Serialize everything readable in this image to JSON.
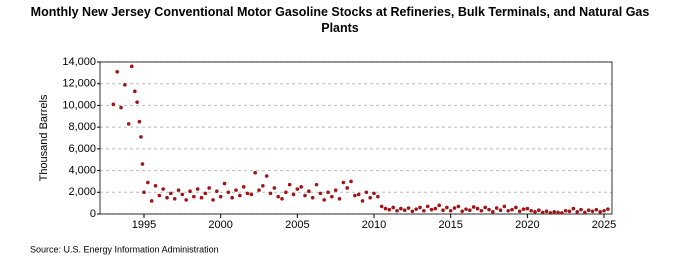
{
  "chart_data": {
    "type": "scatter",
    "title": "Monthly New Jersey Conventional Motor Gasoline Stocks at Refineries, Bulk Terminals, and Natural Gas Plants",
    "y_label": "Thousand Barrels",
    "source": "Source: U.S. Energy Information Administration",
    "color": "#a01418",
    "grid": true,
    "xlim": [
      1992.13,
      2025.52
    ],
    "xticks": [
      1995,
      2000,
      2005,
      2010,
      2015,
      2020,
      2025
    ],
    "ylim": [
      0,
      14000
    ],
    "yticks": [
      0,
      {
        "value": 2000,
        "label": "2,000"
      },
      {
        "value": 4000,
        "label": "4,000"
      },
      {
        "value": 6000,
        "label": "6,000"
      },
      {
        "value": 8000,
        "label": "8,000"
      },
      {
        "value": 10000,
        "label": "10,000"
      },
      {
        "value": 12000,
        "label": "12,000"
      },
      {
        "value": 14000,
        "label": "14,000"
      }
    ],
    "x": [
      1993.0,
      1993.25,
      1993.5,
      1993.75,
      1994.0,
      1994.2,
      1994.4,
      1994.55,
      1994.7,
      1994.8,
      1994.9,
      1995.0,
      1995.25,
      1995.5,
      1995.75,
      1996.0,
      1996.25,
      1996.5,
      1996.75,
      1997.0,
      1997.25,
      1997.5,
      1997.75,
      1998.0,
      1998.25,
      1998.5,
      1998.75,
      1999.0,
      1999.25,
      1999.5,
      1999.75,
      2000.0,
      2000.25,
      2000.5,
      2000.75,
      2001.0,
      2001.25,
      2001.5,
      2001.75,
      2002.0,
      2002.25,
      2002.5,
      2002.75,
      2003.0,
      2003.25,
      2003.5,
      2003.75,
      2004.0,
      2004.25,
      2004.5,
      2004.75,
      2005.0,
      2005.25,
      2005.5,
      2005.75,
      2006.0,
      2006.25,
      2006.5,
      2006.75,
      2007.0,
      2007.25,
      2007.5,
      2007.75,
      2008.0,
      2008.25,
      2008.5,
      2008.75,
      2009.0,
      2009.25,
      2009.5,
      2009.75,
      2010.0,
      2010.25,
      2010.5,
      2010.75,
      2011.0,
      2011.25,
      2011.5,
      2011.75,
      2012.0,
      2012.25,
      2012.5,
      2012.75,
      2013.0,
      2013.25,
      2013.5,
      2013.75,
      2014.0,
      2014.25,
      2014.5,
      2014.75,
      2015.0,
      2015.25,
      2015.5,
      2015.75,
      2016.0,
      2016.25,
      2016.5,
      2016.75,
      2017.0,
      2017.25,
      2017.5,
      2017.75,
      2018.0,
      2018.25,
      2018.5,
      2018.75,
      2019.0,
      2019.25,
      2019.5,
      2019.75,
      2020.0,
      2020.25,
      2020.5,
      2020.75,
      2021.0,
      2021.25,
      2021.5,
      2021.75,
      2022.0,
      2022.25,
      2022.5,
      2022.75,
      2023.0,
      2023.25,
      2023.5,
      2023.75,
      2024.0,
      2024.25,
      2024.5,
      2024.75,
      2025.0,
      2025.25
    ],
    "values": [
      10100,
      13100,
      9800,
      11900,
      8300,
      13600,
      11300,
      10300,
      8500,
      7100,
      4600,
      2000,
      2900,
      1200,
      2600,
      1700,
      2300,
      1500,
      1900,
      1400,
      2200,
      1800,
      1300,
      2100,
      1600,
      2300,
      1500,
      1900,
      2400,
      1300,
      2100,
      1600,
      2800,
      2000,
      1500,
      2200,
      1700,
      2500,
      1900,
      1800,
      3800,
      2200,
      2600,
      3500,
      1900,
      2400,
      1600,
      1400,
      2000,
      2700,
      1800,
      2300,
      2500,
      1700,
      2100,
      1500,
      2700,
      1900,
      1300,
      2000,
      1600,
      2200,
      1400,
      2900,
      2400,
      3000,
      1700,
      1800,
      1200,
      2000,
      1500,
      1900,
      1600,
      700,
      500,
      400,
      600,
      300,
      500,
      350,
      550,
      250,
      450,
      600,
      300,
      700,
      400,
      500,
      800,
      350,
      600,
      300,
      550,
      700,
      250,
      450,
      350,
      650,
      500,
      300,
      600,
      400,
      200,
      550,
      350,
      700,
      300,
      400,
      600,
      250,
      450,
      500,
      300,
      200,
      350,
      150,
      250,
      100,
      200,
      150,
      100,
      300,
      250,
      500,
      200,
      400,
      150,
      350,
      250,
      400,
      200,
      300,
      450
    ]
  }
}
